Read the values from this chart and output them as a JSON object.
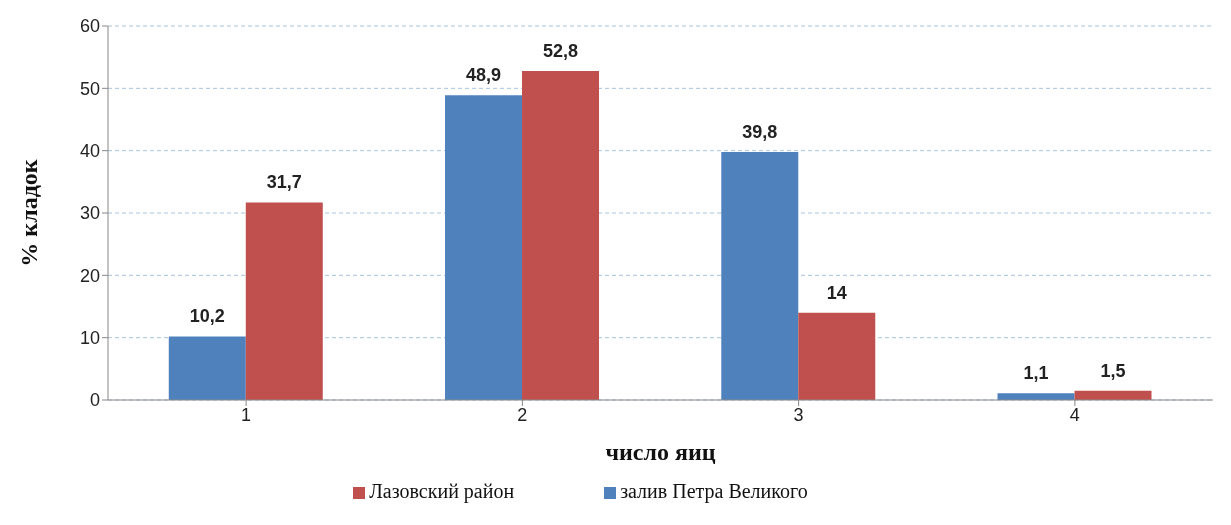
{
  "chart_data": {
    "type": "bar",
    "xlabel": "число яиц",
    "ylabel": "% кладок",
    "categories": [
      "1",
      "2",
      "3",
      "4"
    ],
    "series": [
      {
        "name": "залив Петра Великого",
        "color": "#4f81bd",
        "values": [
          10.2,
          48.9,
          39.8,
          1.1
        ],
        "value_labels": [
          "10,2",
          "48,9",
          "39,8",
          "1,1"
        ]
      },
      {
        "name": "Лазовский район",
        "color": "#c0504d",
        "values": [
          31.7,
          52.8,
          14,
          1.5
        ],
        "value_labels": [
          "31,7",
          "52,8",
          "14",
          "1,5"
        ]
      }
    ],
    "ylim": [
      0,
      60
    ],
    "yticks": [
      0,
      10,
      20,
      30,
      40,
      50,
      60
    ],
    "grid": "y",
    "legend": "bottom"
  }
}
